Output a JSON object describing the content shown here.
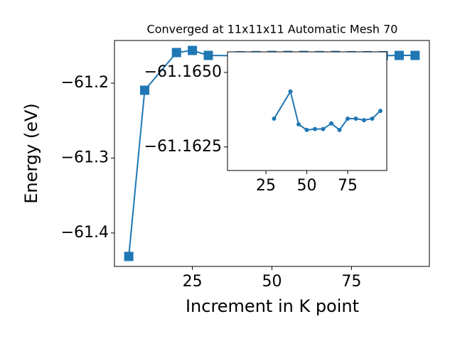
{
  "chart_data": [
    {
      "type": "line",
      "title": "Converged at 11x11x11 Automatic Mesh 70",
      "xlabel": "Increment in K point",
      "ylabel": "Energy (eV)",
      "x": [
        5,
        10,
        20,
        25,
        30,
        40,
        45,
        50,
        55,
        60,
        65,
        70,
        75,
        80,
        85,
        90,
        95
      ],
      "series": [
        {
          "color": "#1f77b4",
          "marker": "square",
          "values": [
            -61.4313,
            -61.2095,
            -61.1592,
            -61.1564,
            -61.163,
            -61.1635,
            -61.1633,
            -61.1631,
            -61.1631,
            -61.1631,
            -61.1633,
            -61.1631,
            -61.1634,
            -61.1634,
            -61.1634,
            -61.163,
            -61.163
          ]
        }
      ],
      "xlim": [
        0.5,
        99.5
      ],
      "ylim": [
        -61.4446,
        -61.1431
      ],
      "xticks": [
        25,
        50,
        75
      ],
      "yticks": [
        {
          "value": -61.2,
          "label": "−61.2"
        },
        {
          "value": -61.3,
          "label": "−61.3"
        },
        {
          "value": -61.4,
          "label": "−61.4"
        }
      ]
    },
    {
      "type": "line",
      "x": [
        30,
        40,
        45,
        50,
        55,
        60,
        65,
        70,
        75,
        80,
        85,
        90,
        95
      ],
      "series": [
        {
          "color": "#1f77b4",
          "marker": "circle",
          "values": [
            -61.16345,
            -61.16436,
            -61.16326,
            -61.16307,
            -61.1631,
            -61.1631,
            -61.16329,
            -61.16307,
            -61.16345,
            -61.16345,
            -61.1634,
            -61.16345,
            -61.16371
          ]
        }
      ],
      "xlim": [
        1.5,
        98.9
      ],
      "ylim": [
        -61.16171,
        -61.16569
      ],
      "xticks": [
        25,
        50,
        75
      ],
      "yticks": [
        {
          "value": -61.165,
          "label": "−61.1650"
        },
        {
          "value": -61.1625,
          "label": "−61.1625"
        }
      ]
    }
  ]
}
